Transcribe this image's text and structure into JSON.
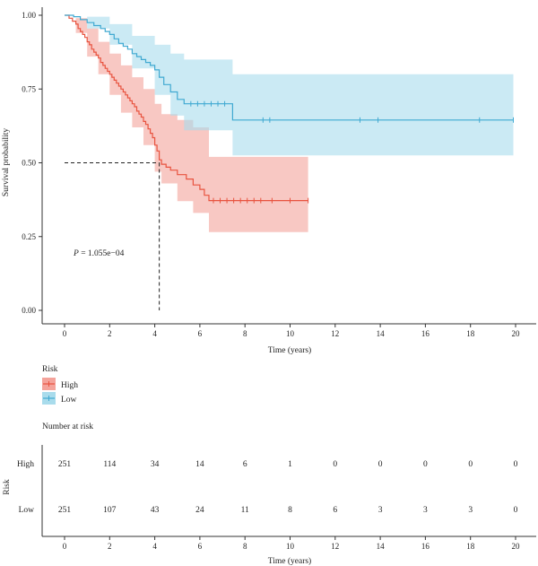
{
  "chart_data": {
    "type": "line",
    "subtype": "kaplan-meier",
    "xlabel": "Time (years)",
    "ylabel": "Survival probability",
    "xlim": [
      0,
      20
    ],
    "ylim": [
      0,
      1
    ],
    "xticks": [
      0,
      2,
      4,
      6,
      8,
      10,
      12,
      14,
      16,
      18,
      20
    ],
    "yticks": [
      "0.00",
      "0.25",
      "0.50",
      "0.75",
      "1.00"
    ],
    "grid": false,
    "annotation": {
      "p_prefix": "P",
      "p_text": " = 1.055e−04"
    },
    "median_line": {
      "y": 0.5,
      "x": 4.2
    },
    "legend": {
      "title": "Risk",
      "placement": "bottom-left",
      "items": [
        "High",
        "Low"
      ]
    },
    "series": [
      {
        "name": "High",
        "color": "#e8533f",
        "band_color": "#f4a39b",
        "steps": [
          [
            0,
            1.0
          ],
          [
            0.2,
            0.99
          ],
          [
            0.35,
            0.98
          ],
          [
            0.5,
            0.97
          ],
          [
            0.6,
            0.955
          ],
          [
            0.7,
            0.945
          ],
          [
            0.8,
            0.935
          ],
          [
            0.9,
            0.925
          ],
          [
            1.0,
            0.91
          ],
          [
            1.1,
            0.9
          ],
          [
            1.2,
            0.885
          ],
          [
            1.3,
            0.875
          ],
          [
            1.4,
            0.865
          ],
          [
            1.5,
            0.855
          ],
          [
            1.6,
            0.84
          ],
          [
            1.7,
            0.83
          ],
          [
            1.8,
            0.82
          ],
          [
            1.9,
            0.81
          ],
          [
            2.0,
            0.8
          ],
          [
            2.1,
            0.79
          ],
          [
            2.2,
            0.78
          ],
          [
            2.3,
            0.77
          ],
          [
            2.4,
            0.76
          ],
          [
            2.5,
            0.75
          ],
          [
            2.6,
            0.74
          ],
          [
            2.7,
            0.73
          ],
          [
            2.8,
            0.72
          ],
          [
            2.9,
            0.71
          ],
          [
            3.0,
            0.7
          ],
          [
            3.1,
            0.69
          ],
          [
            3.2,
            0.675
          ],
          [
            3.3,
            0.665
          ],
          [
            3.4,
            0.655
          ],
          [
            3.5,
            0.64
          ],
          [
            3.6,
            0.63
          ],
          [
            3.7,
            0.615
          ],
          [
            3.8,
            0.6
          ],
          [
            3.9,
            0.585
          ],
          [
            4.0,
            0.56
          ],
          [
            4.1,
            0.54
          ],
          [
            4.2,
            0.51
          ],
          [
            4.3,
            0.495
          ],
          [
            4.5,
            0.485
          ],
          [
            4.7,
            0.475
          ],
          [
            5.0,
            0.46
          ],
          [
            5.4,
            0.445
          ],
          [
            5.7,
            0.425
          ],
          [
            6.0,
            0.41
          ],
          [
            6.2,
            0.39
          ],
          [
            6.4,
            0.372
          ],
          [
            10.8,
            0.372
          ]
        ],
        "upper": [
          [
            0,
            1.0
          ],
          [
            0.5,
            0.99
          ],
          [
            1.0,
            0.955
          ],
          [
            1.5,
            0.91
          ],
          [
            2.0,
            0.87
          ],
          [
            2.5,
            0.83
          ],
          [
            3.0,
            0.79
          ],
          [
            3.5,
            0.75
          ],
          [
            4.0,
            0.7
          ],
          [
            4.3,
            0.665
          ],
          [
            5.0,
            0.645
          ],
          [
            5.7,
            0.62
          ],
          [
            6.4,
            0.52
          ],
          [
            10.8,
            0.52
          ]
        ],
        "lower": [
          [
            0,
            1.0
          ],
          [
            0.5,
            0.94
          ],
          [
            1.0,
            0.86
          ],
          [
            1.5,
            0.8
          ],
          [
            2.0,
            0.73
          ],
          [
            2.5,
            0.67
          ],
          [
            3.0,
            0.62
          ],
          [
            3.5,
            0.56
          ],
          [
            4.0,
            0.47
          ],
          [
            4.3,
            0.43
          ],
          [
            5.0,
            0.37
          ],
          [
            5.7,
            0.33
          ],
          [
            6.4,
            0.265
          ],
          [
            10.8,
            0.265
          ]
        ],
        "censors": [
          [
            6.6,
            0.372
          ],
          [
            6.9,
            0.372
          ],
          [
            7.2,
            0.372
          ],
          [
            7.5,
            0.372
          ],
          [
            7.8,
            0.372
          ],
          [
            8.1,
            0.372
          ],
          [
            8.4,
            0.372
          ],
          [
            8.7,
            0.372
          ],
          [
            9.2,
            0.372
          ],
          [
            10.0,
            0.372
          ],
          [
            10.8,
            0.372
          ]
        ]
      },
      {
        "name": "Low",
        "color": "#40a9d1",
        "band_color": "#a9dcec",
        "steps": [
          [
            0,
            1.0
          ],
          [
            0.4,
            0.995
          ],
          [
            0.7,
            0.985
          ],
          [
            1.0,
            0.975
          ],
          [
            1.3,
            0.965
          ],
          [
            1.6,
            0.955
          ],
          [
            1.8,
            0.945
          ],
          [
            2.0,
            0.935
          ],
          [
            2.2,
            0.92
          ],
          [
            2.4,
            0.905
          ],
          [
            2.6,
            0.895
          ],
          [
            2.8,
            0.885
          ],
          [
            3.0,
            0.87
          ],
          [
            3.2,
            0.86
          ],
          [
            3.4,
            0.85
          ],
          [
            3.6,
            0.84
          ],
          [
            3.8,
            0.83
          ],
          [
            4.0,
            0.815
          ],
          [
            4.2,
            0.79
          ],
          [
            4.4,
            0.765
          ],
          [
            4.7,
            0.74
          ],
          [
            5.0,
            0.715
          ],
          [
            5.3,
            0.7
          ],
          [
            7.4,
            0.7
          ],
          [
            7.45,
            0.645
          ],
          [
            19.9,
            0.645
          ]
        ],
        "upper": [
          [
            0,
            1.0
          ],
          [
            1.0,
            0.995
          ],
          [
            2.0,
            0.97
          ],
          [
            3.0,
            0.93
          ],
          [
            4.0,
            0.9
          ],
          [
            4.7,
            0.87
          ],
          [
            5.3,
            0.85
          ],
          [
            7.4,
            0.85
          ],
          [
            7.45,
            0.8
          ],
          [
            19.9,
            0.8
          ]
        ],
        "lower": [
          [
            0,
            1.0
          ],
          [
            1.0,
            0.955
          ],
          [
            2.0,
            0.9
          ],
          [
            3.0,
            0.82
          ],
          [
            4.0,
            0.73
          ],
          [
            4.7,
            0.66
          ],
          [
            5.3,
            0.61
          ],
          [
            7.4,
            0.61
          ],
          [
            7.45,
            0.525
          ],
          [
            19.9,
            0.525
          ]
        ],
        "censors": [
          [
            5.6,
            0.7
          ],
          [
            5.9,
            0.7
          ],
          [
            6.2,
            0.7
          ],
          [
            6.5,
            0.7
          ],
          [
            6.8,
            0.7
          ],
          [
            7.1,
            0.7
          ],
          [
            8.8,
            0.645
          ],
          [
            9.1,
            0.645
          ],
          [
            13.1,
            0.645
          ],
          [
            13.9,
            0.645
          ],
          [
            18.4,
            0.645
          ],
          [
            19.9,
            0.645
          ]
        ]
      }
    ],
    "risk_table": {
      "title": "Number at risk",
      "ylabel": "Risk",
      "xlabel": "Time (years)",
      "times": [
        0,
        2,
        4,
        6,
        8,
        10,
        12,
        14,
        16,
        18,
        20
      ],
      "rows": [
        {
          "name": "High",
          "counts": [
            251,
            114,
            34,
            14,
            6,
            1,
            0,
            0,
            0,
            0,
            0
          ]
        },
        {
          "name": "Low",
          "counts": [
            251,
            107,
            43,
            24,
            11,
            8,
            6,
            3,
            3,
            3,
            0
          ]
        }
      ]
    }
  }
}
